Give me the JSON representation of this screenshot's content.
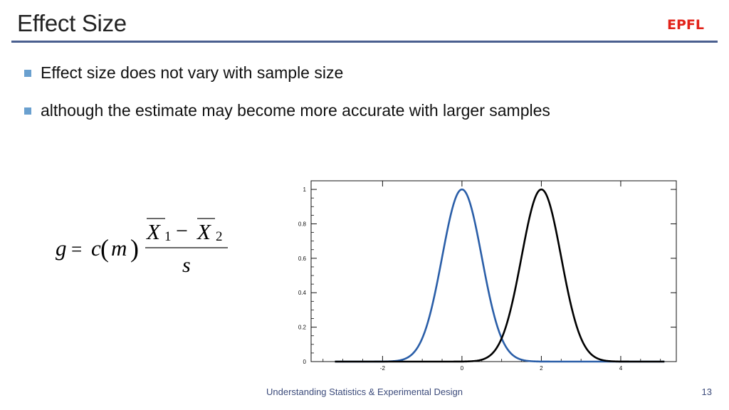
{
  "slide": {
    "title": "Effect Size",
    "logo": "EPFL",
    "bullets": [
      "Effect size does not vary with sample size",
      "although the estimate may become more accurate with larger samples"
    ],
    "formula": {
      "lhs": "g",
      "eq": "=",
      "c": "c",
      "m": "m",
      "x": "X",
      "sub1": "1",
      "sub2": "2",
      "minus": "−",
      "denom": "s"
    },
    "footer": "Understanding Statistics & Experimental Design",
    "page_number": "13"
  },
  "chart_data": {
    "type": "line",
    "x_ticks": [
      "-2",
      "0",
      "2",
      "4"
    ],
    "y_ticks": [
      "0",
      "0.2",
      "0.4",
      "0.6",
      "0.8",
      "1"
    ],
    "xlim": [
      -3.8,
      5.4
    ],
    "ylim": [
      0,
      1.05
    ],
    "series": [
      {
        "mean": 0,
        "sd": 0.5,
        "peak": 1,
        "color": "#2a5ea8"
      },
      {
        "mean": 2,
        "sd": 0.5,
        "peak": 1,
        "color": "#000000"
      }
    ],
    "grid": false
  }
}
